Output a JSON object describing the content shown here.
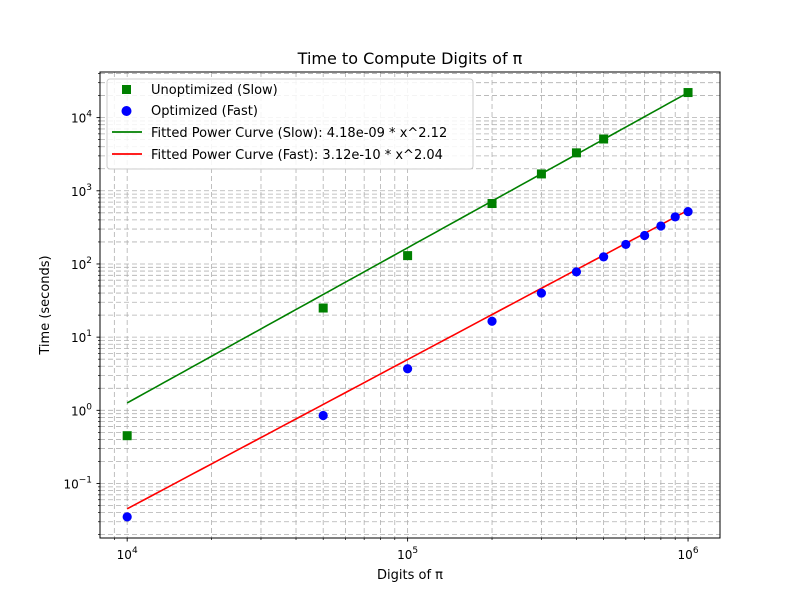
{
  "chart_data": {
    "type": "scatter",
    "title": "Time to Compute Digits of π",
    "xlabel": "Digits of π",
    "ylabel": "Time (seconds)",
    "xscale": "log",
    "yscale": "log",
    "xlim": [
      8000,
      1300000
    ],
    "ylim": [
      0.018,
      42000
    ],
    "grid": true,
    "legend_position": "top-left",
    "x_ticks": [
      {
        "value": 10000,
        "base": "10",
        "exp": "4"
      },
      {
        "value": 100000,
        "base": "10",
        "exp": "5"
      },
      {
        "value": 1000000,
        "base": "10",
        "exp": "6"
      }
    ],
    "y_ticks": [
      {
        "value": 0.1,
        "base": "10",
        "exp": "−1"
      },
      {
        "value": 1,
        "base": "10",
        "exp": "0"
      },
      {
        "value": 10,
        "base": "10",
        "exp": "1"
      },
      {
        "value": 100,
        "base": "10",
        "exp": "2"
      },
      {
        "value": 1000,
        "base": "10",
        "exp": "3"
      },
      {
        "value": 10000,
        "base": "10",
        "exp": "4"
      }
    ],
    "series": [
      {
        "name": "Unoptimized (Slow)",
        "kind": "scatter",
        "marker": "square",
        "color": "#008000",
        "x": [
          10000,
          50000,
          100000,
          200000,
          300000,
          400000,
          500000,
          1000000
        ],
        "y": [
          0.45,
          25,
          130,
          670,
          1700,
          3300,
          5100,
          22000
        ]
      },
      {
        "name": "Optimized (Fast)",
        "kind": "scatter",
        "marker": "circle",
        "color": "#0000ff",
        "x": [
          10000,
          50000,
          100000,
          200000,
          300000,
          400000,
          500000,
          600000,
          700000,
          800000,
          900000,
          1000000
        ],
        "y": [
          0.035,
          0.85,
          3.7,
          16.5,
          40,
          78,
          125,
          185,
          245,
          330,
          440,
          520
        ]
      },
      {
        "name": "Fitted Power Curve (Slow): 4.18e-09 * x^2.12",
        "kind": "line",
        "color": "#008000",
        "coef": 4.18e-09,
        "exponent": 2.12,
        "x_range": [
          10000,
          1000000
        ]
      },
      {
        "name": "Fitted Power Curve (Fast): 3.12e-10 * x^2.04",
        "kind": "line",
        "color": "#ff0000",
        "coef": 3.12e-10,
        "exponent": 2.04,
        "x_range": [
          10000,
          1000000
        ]
      }
    ]
  }
}
